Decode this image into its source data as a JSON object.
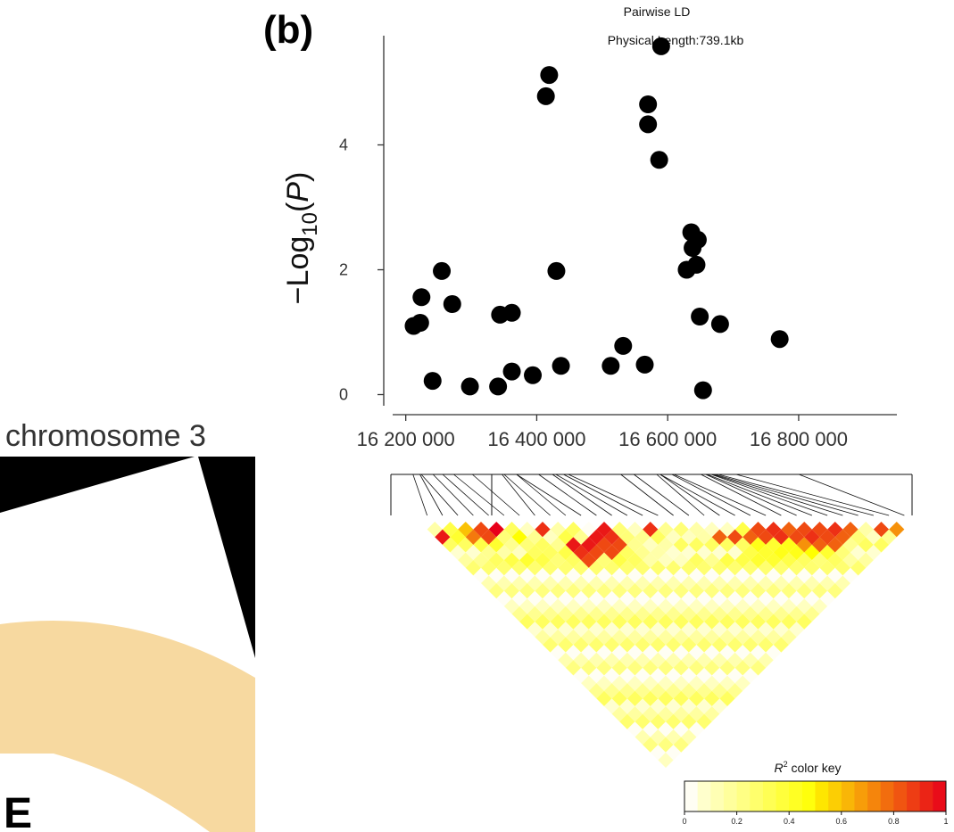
{
  "chromosome_panel": {
    "label": "chromosome 3",
    "fragment_letter": "E",
    "colors": {
      "wedge": "#f7d9a0",
      "band": "#000000"
    }
  },
  "chart_data": [
    {
      "type": "scatter",
      "panel_label": "(b)",
      "title": "Pairwise LD",
      "subtitle": "Physical Length:739.1kb",
      "xlabel": "",
      "ylabel": "-Log10(P)",
      "xlim": [
        16180000,
        16950000
      ],
      "ylim": [
        -0.15,
        5.75
      ],
      "x_ticks": [
        16200000,
        16400000,
        16600000,
        16800000
      ],
      "x_tick_labels": [
        "16 200 000",
        "16 400 000",
        "16 600 000",
        "16 800 000"
      ],
      "y_ticks": [
        0,
        2,
        4
      ],
      "y_tick_labels": [
        "0",
        "2",
        "4"
      ],
      "point_color": "#000000",
      "points": [
        {
          "x": 16212000,
          "y": 1.1
        },
        {
          "x": 16222000,
          "y": 1.15
        },
        {
          "x": 16224000,
          "y": 1.56
        },
        {
          "x": 16241000,
          "y": 0.22
        },
        {
          "x": 16255000,
          "y": 1.98
        },
        {
          "x": 16271000,
          "y": 1.45
        },
        {
          "x": 16298000,
          "y": 0.13
        },
        {
          "x": 16341000,
          "y": 0.13
        },
        {
          "x": 16344000,
          "y": 1.28
        },
        {
          "x": 16362000,
          "y": 0.37
        },
        {
          "x": 16362000,
          "y": 1.31
        },
        {
          "x": 16394000,
          "y": 0.31
        },
        {
          "x": 16414000,
          "y": 4.78
        },
        {
          "x": 16419000,
          "y": 5.12
        },
        {
          "x": 16430000,
          "y": 1.98
        },
        {
          "x": 16437000,
          "y": 0.46
        },
        {
          "x": 16513000,
          "y": 0.46
        },
        {
          "x": 16532000,
          "y": 0.78
        },
        {
          "x": 16565000,
          "y": 0.48
        },
        {
          "x": 16570000,
          "y": 4.65
        },
        {
          "x": 16570000,
          "y": 4.33
        },
        {
          "x": 16587000,
          "y": 3.76
        },
        {
          "x": 16590000,
          "y": 5.58
        },
        {
          "x": 16629000,
          "y": 2.0
        },
        {
          "x": 16636000,
          "y": 2.6
        },
        {
          "x": 16638000,
          "y": 2.35
        },
        {
          "x": 16644000,
          "y": 2.08
        },
        {
          "x": 16646000,
          "y": 2.48
        },
        {
          "x": 16649000,
          "y": 1.25
        },
        {
          "x": 16654000,
          "y": 0.07
        },
        {
          "x": 16680000,
          "y": 1.13
        },
        {
          "x": 16771000,
          "y": 0.89
        }
      ]
    },
    {
      "type": "heatmap",
      "title": "",
      "n_snps": 32,
      "connector_rows": [
        {
          "count": 5,
          "offset": 0
        },
        {
          "count": 27,
          "offset": 5
        }
      ],
      "ld_values_description": "pairwise r2 between SNPs, diagonal = adjacent pairs",
      "ld_cells": [
        [
          1,
          2,
          0.15
        ],
        [
          2,
          3,
          0.35
        ],
        [
          3,
          4,
          0.6
        ],
        [
          4,
          5,
          0.85
        ],
        [
          5,
          6,
          1.0
        ],
        [
          6,
          7,
          0.3
        ],
        [
          7,
          8,
          0.1
        ],
        [
          8,
          9,
          0.9
        ],
        [
          9,
          10,
          0.15
        ],
        [
          10,
          11,
          0.3
        ],
        [
          11,
          12,
          0.05
        ],
        [
          12,
          13,
          0.95
        ],
        [
          13,
          14,
          0.25
        ],
        [
          14,
          15,
          0.1
        ],
        [
          15,
          16,
          0.9
        ],
        [
          16,
          17,
          0.2
        ],
        [
          17,
          18,
          0.25
        ],
        [
          18,
          19,
          0.15
        ],
        [
          19,
          20,
          0.1
        ],
        [
          20,
          21,
          0.1
        ],
        [
          21,
          22,
          0.35
        ],
        [
          22,
          23,
          0.85
        ],
        [
          23,
          24,
          0.9
        ],
        [
          24,
          25,
          0.8
        ],
        [
          25,
          26,
          0.85
        ],
        [
          26,
          27,
          0.85
        ],
        [
          27,
          28,
          0.9
        ],
        [
          28,
          29,
          0.8
        ],
        [
          29,
          30,
          0.15
        ],
        [
          30,
          31,
          0.85
        ],
        [
          31,
          32,
          0.7
        ],
        [
          1,
          3,
          0.95
        ],
        [
          2,
          4,
          0.4
        ],
        [
          3,
          5,
          0.75
        ],
        [
          4,
          6,
          0.85
        ],
        [
          5,
          7,
          0.25
        ],
        [
          6,
          8,
          0.5
        ],
        [
          7,
          9,
          0.2
        ],
        [
          8,
          10,
          0.1
        ],
        [
          9,
          11,
          0.35
        ],
        [
          10,
          12,
          0.2
        ],
        [
          11,
          13,
          0.95
        ],
        [
          12,
          14,
          0.9
        ],
        [
          13,
          15,
          0.25
        ],
        [
          14,
          16,
          0.2
        ],
        [
          15,
          17,
          0.3
        ],
        [
          16,
          18,
          0.1
        ],
        [
          17,
          19,
          0.1
        ],
        [
          18,
          20,
          0.15
        ],
        [
          19,
          21,
          0.8
        ],
        [
          20,
          22,
          0.85
        ],
        [
          21,
          23,
          0.8
        ],
        [
          22,
          24,
          0.85
        ],
        [
          23,
          25,
          0.9
        ],
        [
          24,
          26,
          0.85
        ],
        [
          25,
          27,
          0.9
        ],
        [
          26,
          28,
          0.85
        ],
        [
          27,
          29,
          0.8
        ],
        [
          28,
          30,
          0.25
        ],
        [
          29,
          31,
          0.1
        ],
        [
          2,
          5,
          0.3
        ],
        [
          3,
          6,
          0.35
        ],
        [
          4,
          7,
          0.4
        ],
        [
          5,
          8,
          0.2
        ],
        [
          6,
          9,
          0.25
        ],
        [
          7,
          10,
          0.3
        ],
        [
          8,
          11,
          0.2
        ],
        [
          9,
          12,
          0.95
        ],
        [
          10,
          13,
          0.95
        ],
        [
          11,
          14,
          0.85
        ],
        [
          12,
          15,
          0.85
        ],
        [
          13,
          16,
          0.2
        ],
        [
          14,
          17,
          0.1
        ],
        [
          15,
          18,
          0.15
        ],
        [
          20,
          23,
          0.3
        ],
        [
          21,
          24,
          0.45
        ],
        [
          22,
          25,
          0.4
        ],
        [
          23,
          26,
          0.45
        ],
        [
          24,
          27,
          0.7
        ],
        [
          25,
          28,
          0.8
        ],
        [
          26,
          29,
          0.8
        ],
        [
          27,
          30,
          0.2
        ],
        [
          3,
          7,
          0.2
        ],
        [
          4,
          8,
          0.15
        ],
        [
          5,
          9,
          0.1
        ],
        [
          6,
          10,
          0.3
        ],
        [
          7,
          11,
          0.3
        ],
        [
          8,
          12,
          0.35
        ],
        [
          9,
          13,
          0.9
        ],
        [
          10,
          14,
          0.85
        ],
        [
          11,
          15,
          0.85
        ],
        [
          12,
          16,
          0.3
        ],
        [
          13,
          17,
          0.2
        ],
        [
          14,
          18,
          0.15
        ],
        [
          20,
          24,
          0.35
        ],
        [
          21,
          25,
          0.4
        ],
        [
          22,
          26,
          0.45
        ],
        [
          23,
          27,
          0.45
        ],
        [
          24,
          28,
          0.5
        ],
        [
          25,
          29,
          0.4
        ],
        [
          26,
          30,
          0.25
        ],
        [
          2,
          7,
          0.2
        ],
        [
          3,
          8,
          0.3
        ],
        [
          4,
          9,
          0.35
        ],
        [
          5,
          10,
          0.4
        ],
        [
          6,
          11,
          0.35
        ],
        [
          7,
          12,
          0.25
        ],
        [
          8,
          13,
          0.3
        ],
        [
          9,
          14,
          0.85
        ],
        [
          10,
          15,
          0.25
        ],
        [
          11,
          16,
          0.35
        ],
        [
          12,
          17,
          0.3
        ],
        [
          13,
          18,
          0.15
        ],
        [
          14,
          19,
          0.1
        ],
        [
          15,
          20,
          0.1
        ],
        [
          16,
          21,
          0.3
        ],
        [
          17,
          22,
          0.2
        ],
        [
          18,
          23,
          0.35
        ],
        [
          19,
          24,
          0.35
        ],
        [
          20,
          25,
          0.4
        ],
        [
          21,
          26,
          0.4
        ],
        [
          22,
          27,
          0.35
        ],
        [
          23,
          28,
          0.3
        ],
        [
          24,
          29,
          0.25
        ],
        [
          25,
          30,
          0.3
        ]
      ]
    }
  ],
  "color_key": {
    "title_symbol": "R",
    "title_sup": "2",
    "title_rest": " color key",
    "tick_labels": [
      "0",
      "0.2",
      "0.4",
      "0.6",
      "0.8",
      "1"
    ],
    "range": [
      0,
      1
    ],
    "colors": {
      "low": "#ffffff",
      "mid": "#fff200",
      "high": "#e8001a"
    }
  }
}
